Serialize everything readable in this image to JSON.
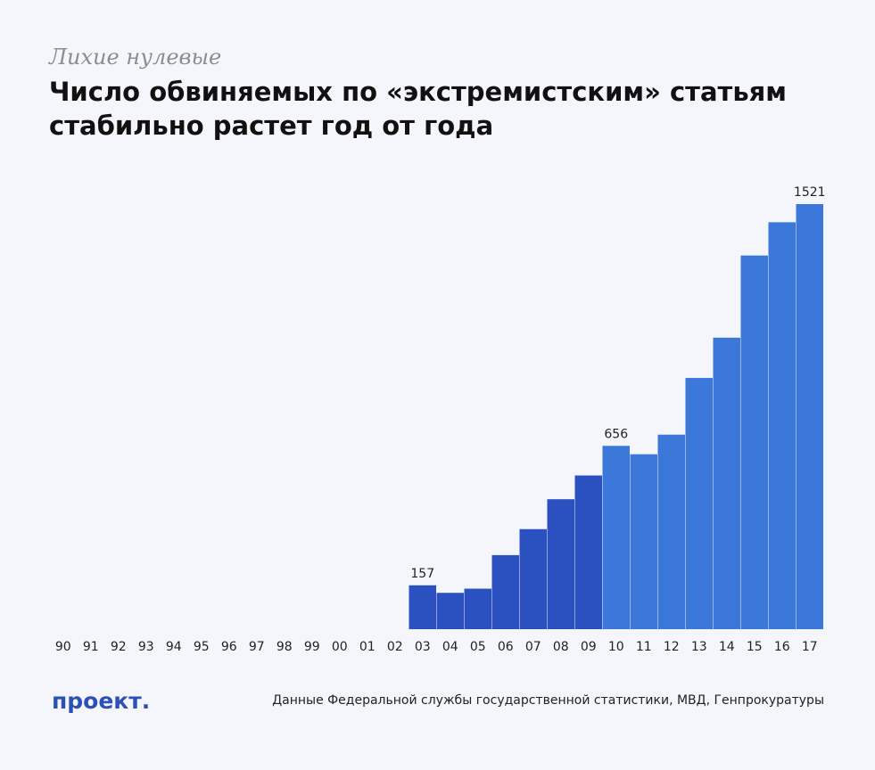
{
  "kicker": "Лихие нулевые",
  "title": "Число обвиняемых по «экстремистским» статьям стабильно растет год от года",
  "logo": "проект.",
  "source": "Данные Федеральной службы государственной статистики, МВД, Генпрокуратуры",
  "colors": {
    "period_2000s": "#2b50c0",
    "period_2010s": "#3c77da",
    "background": "#f4f6fb"
  },
  "chart_data": {
    "type": "bar",
    "title": "Число обвиняемых по «экстремистским» статьям стабильно растет год от года",
    "xlabel": "",
    "ylabel": "",
    "categories": [
      "90",
      "91",
      "92",
      "93",
      "94",
      "95",
      "96",
      "97",
      "98",
      "99",
      "00",
      "01",
      "02",
      "03",
      "04",
      "05",
      "06",
      "07",
      "08",
      "09",
      "10",
      "11",
      "12",
      "13",
      "14",
      "15",
      "16",
      "17"
    ],
    "values": [
      0,
      0,
      0,
      0,
      0,
      0,
      0,
      0,
      0,
      0,
      0,
      0,
      0,
      157,
      130,
      145,
      265,
      358,
      465,
      550,
      656,
      626,
      696,
      899,
      1043,
      1337,
      1456,
      1521
    ],
    "labels": [
      {
        "category": "03",
        "text": "157"
      },
      {
        "category": "10",
        "text": "656"
      },
      {
        "category": "17",
        "text": "1521"
      }
    ],
    "ylim": [
      0,
      1521
    ],
    "grid": false,
    "legend": "none"
  }
}
